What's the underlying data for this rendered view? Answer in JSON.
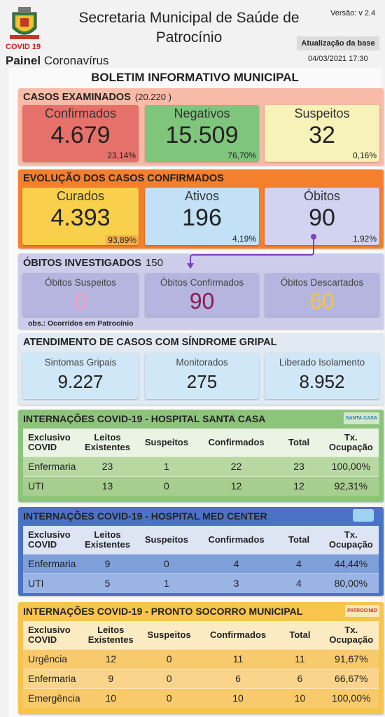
{
  "header": {
    "title": "Secretaria Municipal de Saúde de Patrocínio",
    "logo_label": "COVID 19",
    "panel_bold": "Painel",
    "panel_text": "Coronavírus",
    "version": "Versão: v 2.4",
    "update_label": "Atualização da base",
    "update_date": "04/03/2021 17:30"
  },
  "bulletin_title": "BOLETIM INFORMATIVO MUNICIPAL",
  "sections": [
    {
      "title": "CASOS EXAMINADOS",
      "total": "(20.220  )",
      "cards": [
        {
          "label": "Confirmados",
          "value": "4.679",
          "percent": "23,14%"
        },
        {
          "label": "Negativos",
          "value": "15.509",
          "percent": "76,70%"
        },
        {
          "label": "Suspeitos",
          "value": "32",
          "percent": "0,16%"
        }
      ]
    },
    {
      "title": "EVOLUÇÃO DOS CASOS CONFIRMADOS",
      "cards": [
        {
          "label": "Curados",
          "value": "4.393",
          "percent": "93,89%"
        },
        {
          "label": "Ativos",
          "value": "196",
          "percent": "4,19%"
        },
        {
          "label": "Óbitos",
          "value": "90",
          "percent": "1,92%"
        }
      ]
    },
    {
      "title": "ÓBITOS INVESTIGADOS",
      "total": "150",
      "cards": [
        {
          "label": "Óbitos Suspeitos",
          "value": "0"
        },
        {
          "label": "Óbitos Confirmados",
          "value": "90"
        },
        {
          "label": "Óbitos Descartados",
          "value": "60"
        }
      ],
      "note": "obs.: Ocorridos em Patrocínio"
    },
    {
      "title": "ATENDIMENTO DE CASOS COM SÍNDROME GRIPAL",
      "cards": [
        {
          "label": "Sintomas Gripais",
          "value": "9.227"
        },
        {
          "label": "Monitorados",
          "value": "275"
        },
        {
          "label": "Liberado Isolamento",
          "value": "8.952"
        }
      ]
    }
  ],
  "hospitals": [
    {
      "title": "INTERNAÇÕES COVID-19 - HOSPITAL SANTA CASA",
      "logo": "SANTA CASA",
      "columns": [
        "Exclusivo COVID",
        "Leitos Existentes",
        "Suspeitos",
        "Confirmados",
        "Total",
        "Tx. Ocupação"
      ],
      "rows": [
        [
          "Enfermaria",
          "23",
          "1",
          "22",
          "23",
          "100,00%"
        ],
        [
          "UTI",
          "13",
          "0",
          "12",
          "12",
          "92,31%"
        ]
      ]
    },
    {
      "title": "INTERNAÇÕES COVID-19 - HOSPITAL MED CENTER",
      "columns": [
        "Exclusivo COVID",
        "Leitos Existentes",
        "Suspeitos",
        "Confirmados",
        "Total",
        "Tx. Ocupação"
      ],
      "rows": [
        [
          "Enfermaria",
          "9",
          "0",
          "4",
          "4",
          "44,44%"
        ],
        [
          "UTI",
          "5",
          "1",
          "3",
          "4",
          "80,00%"
        ]
      ]
    },
    {
      "title": "INTERNAÇÕES COVID-19 - PRONTO SOCORRO MUNICIPAL",
      "logo": "PATROCINIO",
      "columns": [
        "Exclusivo COVID",
        "Leitos Existentes",
        "Suspeitos",
        "Confirmados",
        "Total",
        "Tx. Ocupação"
      ],
      "rows": [
        [
          "Urgência",
          "12",
          "0",
          "11",
          "11",
          "91,67%"
        ],
        [
          "Enfermaria",
          "9",
          "0",
          "6",
          "6",
          "66,67%"
        ],
        [
          "Emergência",
          "10",
          "0",
          "10",
          "10",
          "100,00%"
        ]
      ]
    }
  ]
}
